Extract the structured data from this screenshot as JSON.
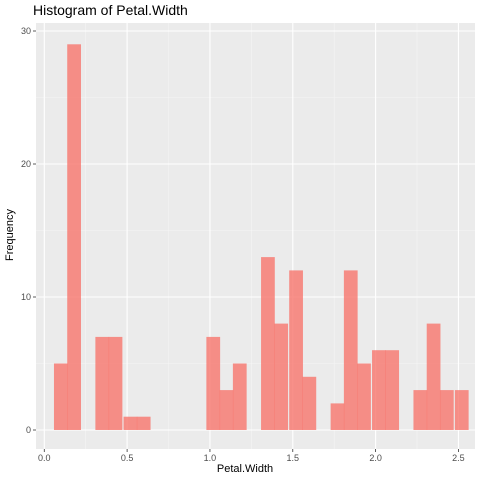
{
  "chart_data": {
    "type": "bar",
    "title": "Histogram of Petal.Width",
    "xlabel": "Petal.Width",
    "ylabel": "Frequency",
    "xlim": [
      -0.05,
      2.6
    ],
    "ylim": [
      0,
      30
    ],
    "bin_width": 0.083,
    "bins": [
      {
        "x": 0.1,
        "count": 5
      },
      {
        "x": 0.18,
        "count": 29
      },
      {
        "x": 0.27,
        "count": 0
      },
      {
        "x": 0.35,
        "count": 7
      },
      {
        "x": 0.43,
        "count": 7
      },
      {
        "x": 0.52,
        "count": 1
      },
      {
        "x": 0.6,
        "count": 1
      },
      {
        "x": 0.68,
        "count": 0
      },
      {
        "x": 0.77,
        "count": 0
      },
      {
        "x": 0.85,
        "count": 0
      },
      {
        "x": 0.93,
        "count": 0
      },
      {
        "x": 1.02,
        "count": 7
      },
      {
        "x": 1.1,
        "count": 3
      },
      {
        "x": 1.18,
        "count": 5
      },
      {
        "x": 1.27,
        "count": 0
      },
      {
        "x": 1.35,
        "count": 13
      },
      {
        "x": 1.43,
        "count": 8
      },
      {
        "x": 1.52,
        "count": 12
      },
      {
        "x": 1.6,
        "count": 4
      },
      {
        "x": 1.68,
        "count": 0
      },
      {
        "x": 1.77,
        "count": 2
      },
      {
        "x": 1.85,
        "count": 12
      },
      {
        "x": 1.93,
        "count": 5
      },
      {
        "x": 2.02,
        "count": 6
      },
      {
        "x": 2.1,
        "count": 6
      },
      {
        "x": 2.18,
        "count": 0
      },
      {
        "x": 2.27,
        "count": 3
      },
      {
        "x": 2.35,
        "count": 8
      },
      {
        "x": 2.43,
        "count": 3
      },
      {
        "x": 2.52,
        "count": 3
      }
    ],
    "x_ticks": [
      0.0,
      0.5,
      1.0,
      1.5,
      2.0,
      2.5
    ],
    "x_tick_labels": [
      "0.0",
      "0.5",
      "1.0",
      "1.5",
      "2.0",
      "2.5"
    ],
    "y_ticks": [
      0,
      10,
      20,
      30
    ],
    "y_tick_labels": [
      "0",
      "10",
      "20",
      "30"
    ],
    "grid": true,
    "colors": {
      "panel": "#ebebeb",
      "grid_major": "#ffffff",
      "grid_minor": "#f5f5f5",
      "bar_fill": "#f8766d",
      "bar_opacity": 0.8
    }
  }
}
